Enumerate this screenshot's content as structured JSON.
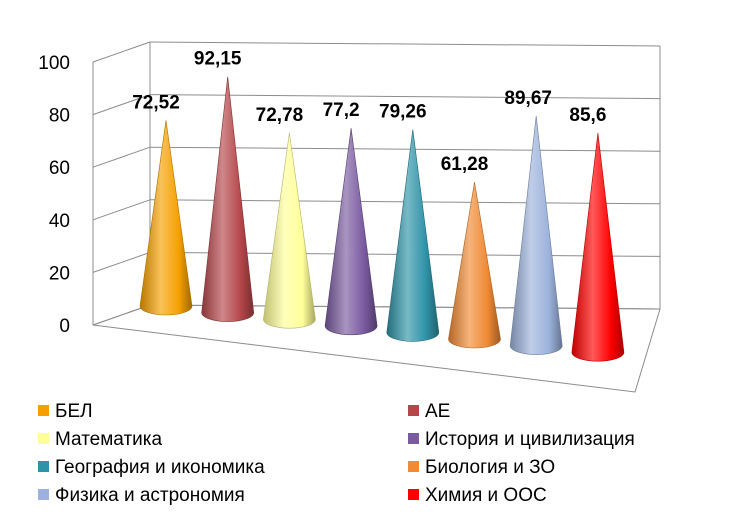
{
  "chart_data": {
    "type": "bar",
    "style": "3d-cone",
    "categories": [
      "БЕЛ",
      "АЕ",
      "Математика",
      "История и цивилизация",
      "География и икономика",
      "Биология и ЗО",
      "Физика и астрономия",
      "Химия и ООС"
    ],
    "values": [
      72.52,
      92.15,
      72.78,
      77.2,
      79.26,
      61.28,
      89.67,
      85.6
    ],
    "data_labels": [
      "72,52",
      "92,15",
      "72,78",
      "77,2",
      "79,26",
      "61,28",
      "89,67",
      "85,6"
    ],
    "colors": [
      "#f5a000",
      "#b5464a",
      "#ffff99",
      "#7a5aa0",
      "#2f93a8",
      "#f08a34",
      "#9cb2dc",
      "#ff0000"
    ],
    "ylim": [
      0,
      100
    ],
    "yticks": [
      "0",
      "20",
      "40",
      "60",
      "80",
      "100"
    ],
    "grid": true,
    "legend_position": "bottom",
    "title": "",
    "xlabel": "",
    "ylabel": ""
  }
}
